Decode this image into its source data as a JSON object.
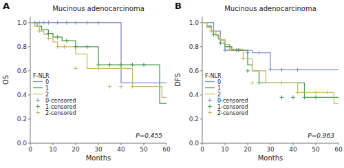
{
  "chart_data": [
    {
      "type": "step",
      "title": "Mucinous adenocarcinoma",
      "panel_label": "A",
      "annotation": "P=0.455",
      "x_label": "Months",
      "y_label": "OS",
      "legend_title": "F-NLR",
      "legend": "lower left",
      "grid": false,
      "xlim": [
        0,
        60
      ],
      "ylim": [
        0.0,
        1.05
      ],
      "xticks": [
        0,
        10,
        20,
        30,
        40,
        50,
        60
      ],
      "yticks": [
        {
          "value": 0.0,
          "label": "0.0"
        },
        0.2,
        0.4,
        0.6,
        0.8,
        {
          "value": 1.0,
          "label": "1.0"
        }
      ],
      "series": [
        {
          "name": "0",
          "type": "step",
          "color": "#8090c8",
          "x": [
            0,
            2,
            4,
            6,
            8,
            33,
            40,
            60
          ],
          "values": [
            1.0,
            1.0,
            1.0,
            1.0,
            1.0,
            1.0,
            0.5,
            0.5
          ]
        },
        {
          "name": "1",
          "type": "step",
          "color": "#4a9a50",
          "x": [
            0,
            3,
            5,
            8,
            10,
            14,
            20,
            30,
            55,
            57,
            60
          ],
          "values": [
            1.0,
            0.97,
            0.94,
            0.91,
            0.88,
            0.85,
            0.8,
            0.65,
            0.65,
            0.33,
            0.33
          ]
        },
        {
          "name": "2",
          "type": "step",
          "color": "#c8b86a",
          "x": [
            0,
            2,
            4,
            6,
            8,
            10,
            12,
            20,
            25,
            45,
            55,
            58,
            60
          ],
          "values": [
            1.0,
            0.97,
            0.93,
            0.9,
            0.87,
            0.84,
            0.8,
            0.74,
            0.62,
            0.47,
            0.47,
            0.38,
            0.38
          ]
        },
        {
          "name": "0-censored",
          "type": "scatter",
          "marker": "plus",
          "color": "#8090c8",
          "x": [
            2,
            4,
            6,
            8,
            12,
            16,
            20,
            25,
            30
          ],
          "values": [
            1.0,
            1.0,
            1.0,
            1.0,
            1.0,
            1.0,
            1.0,
            1.0,
            1.0
          ]
        },
        {
          "name": "1-censored",
          "type": "scatter",
          "marker": "plus",
          "color": "#4a9a50",
          "x": [
            8,
            12,
            16,
            20,
            25,
            30,
            35,
            40,
            45,
            50
          ],
          "values": [
            0.91,
            0.88,
            0.85,
            0.8,
            0.8,
            0.65,
            0.65,
            0.65,
            0.65,
            0.65
          ]
        },
        {
          "name": "2-censored",
          "type": "scatter",
          "marker": "plus",
          "color": "#c8b86a",
          "x": [
            4,
            8,
            12,
            15,
            20,
            30,
            35,
            40,
            45
          ],
          "values": [
            0.93,
            0.87,
            0.8,
            0.8,
            0.62,
            0.62,
            0.47,
            0.47,
            0.47
          ]
        }
      ]
    },
    {
      "type": "step",
      "title": "Mucinous adenocarcinoma",
      "panel_label": "B",
      "annotation": "P=0.963",
      "x_label": "Months",
      "y_label": "DFS",
      "legend_title": "F-NLR",
      "legend": "lower left",
      "grid": false,
      "xlim": [
        0,
        60
      ],
      "ylim": [
        0.0,
        1.05
      ],
      "xticks": [
        0,
        10,
        20,
        30,
        40,
        50,
        60
      ],
      "yticks": [
        {
          "value": 0.0,
          "label": "0.0"
        },
        0.2,
        0.4,
        0.6,
        0.8,
        {
          "value": 1.0,
          "label": "1.0"
        }
      ],
      "series": [
        {
          "name": "0",
          "type": "step",
          "color": "#8090c8",
          "x": [
            0,
            5,
            8,
            10,
            22,
            30,
            42,
            60
          ],
          "values": [
            1.0,
            0.93,
            0.85,
            0.77,
            0.75,
            0.61,
            0.61,
            0.61
          ]
        },
        {
          "name": "1",
          "type": "step",
          "color": "#4a9a50",
          "x": [
            0,
            2,
            4,
            5,
            7,
            8,
            10,
            13,
            20,
            22,
            25,
            30,
            45,
            55,
            60
          ],
          "values": [
            1.0,
            0.97,
            0.93,
            0.9,
            0.87,
            0.83,
            0.8,
            0.77,
            0.65,
            0.6,
            0.5,
            0.5,
            0.38,
            0.38,
            0.38
          ]
        },
        {
          "name": "2",
          "type": "step",
          "color": "#c8b86a",
          "x": [
            0,
            2,
            4,
            6,
            8,
            10,
            12,
            18,
            22,
            28,
            35,
            42,
            55,
            58,
            60
          ],
          "values": [
            1.0,
            0.96,
            0.93,
            0.89,
            0.86,
            0.82,
            0.78,
            0.7,
            0.6,
            0.5,
            0.5,
            0.42,
            0.42,
            0.33,
            0.33
          ]
        },
        {
          "name": "0-censored",
          "type": "scatter",
          "marker": "plus",
          "color": "#8090c8",
          "x": [
            10,
            15,
            20,
            25,
            30,
            35,
            42
          ],
          "values": [
            0.77,
            0.77,
            0.75,
            0.75,
            0.61,
            0.61,
            0.61
          ]
        },
        {
          "name": "1-censored",
          "type": "scatter",
          "marker": "plus",
          "color": "#4a9a50",
          "x": [
            5,
            8,
            12,
            16,
            20,
            25,
            35,
            40,
            45,
            50
          ],
          "values": [
            0.9,
            0.83,
            0.8,
            0.77,
            0.6,
            0.5,
            0.38,
            0.38,
            0.38,
            0.38
          ]
        },
        {
          "name": "2-censored",
          "type": "scatter",
          "marker": "plus",
          "color": "#c8b86a",
          "x": [
            4,
            8,
            12,
            18,
            22,
            35,
            42,
            50,
            55
          ],
          "values": [
            0.93,
            0.86,
            0.78,
            0.7,
            0.5,
            0.5,
            0.42,
            0.42,
            0.42
          ]
        }
      ]
    }
  ]
}
